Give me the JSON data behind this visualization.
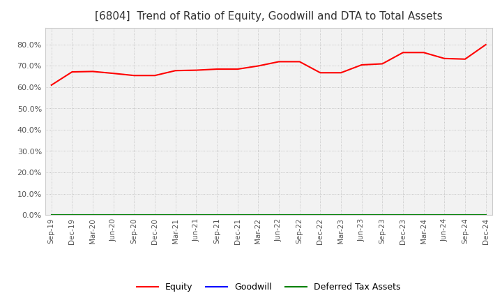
{
  "title": "[6804]  Trend of Ratio of Equity, Goodwill and DTA to Total Assets",
  "x_labels": [
    "Sep-19",
    "Dec-19",
    "Mar-20",
    "Jun-20",
    "Sep-20",
    "Dec-20",
    "Mar-21",
    "Jun-21",
    "Sep-21",
    "Dec-21",
    "Mar-22",
    "Jun-22",
    "Sep-22",
    "Dec-22",
    "Mar-23",
    "Jun-23",
    "Sep-23",
    "Dec-23",
    "Mar-24",
    "Jun-24",
    "Sep-24",
    "Dec-24"
  ],
  "equity": [
    0.61,
    0.672,
    0.674,
    0.665,
    0.655,
    0.655,
    0.678,
    0.68,
    0.685,
    0.685,
    0.7,
    0.72,
    0.72,
    0.668,
    0.668,
    0.705,
    0.71,
    0.763,
    0.763,
    0.735,
    0.732,
    0.8
  ],
  "goodwill": [
    0.0,
    0.0,
    0.0,
    0.0,
    0.0,
    0.0,
    0.0,
    0.0,
    0.0,
    0.0,
    0.0,
    0.0,
    0.0,
    0.0,
    0.0,
    0.0,
    0.0,
    0.0,
    0.0,
    0.0,
    0.0,
    0.0
  ],
  "dta": [
    0.0,
    0.0,
    0.0,
    0.0,
    0.0,
    0.0,
    0.0,
    0.0,
    0.0,
    0.0,
    0.0,
    0.0,
    0.0,
    0.0,
    0.0,
    0.0,
    0.0,
    0.0,
    0.0,
    0.0,
    0.0,
    0.0
  ],
  "equity_color": "#FF0000",
  "goodwill_color": "#0000FF",
  "dta_color": "#008000",
  "ylim": [
    0.0,
    0.88
  ],
  "yticks": [
    0.0,
    0.1,
    0.2,
    0.3,
    0.4,
    0.5,
    0.6,
    0.7,
    0.8
  ],
  "plot_bg_color": "#F2F2F2",
  "fig_bg_color": "#FFFFFF",
  "grid_color": "#AAAAAA",
  "title_fontsize": 11,
  "title_color": "#333333",
  "tick_color": "#555555",
  "legend_labels": [
    "Equity",
    "Goodwill",
    "Deferred Tax Assets"
  ]
}
